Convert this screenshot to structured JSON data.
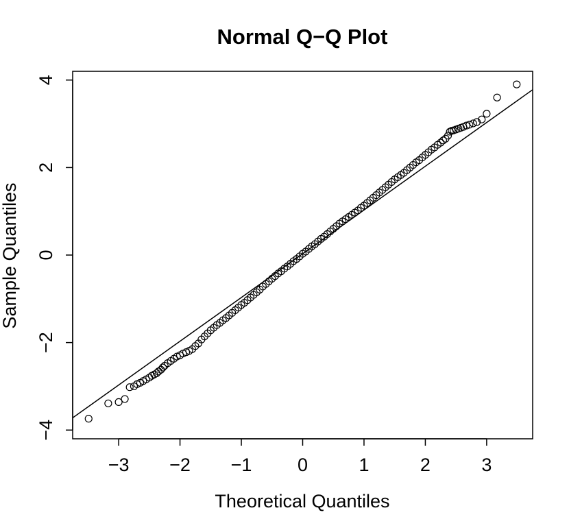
{
  "chart_data": {
    "type": "scatter",
    "title": "Normal Q−Q Plot",
    "xlabel": "Theoretical Quantiles",
    "ylabel": "Sample Quantiles",
    "xlim": [
      -3.75,
      3.75
    ],
    "ylim": [
      -4.2,
      4.2
    ],
    "x_ticks": [
      -3,
      -2,
      -1,
      0,
      1,
      2,
      3
    ],
    "x_tick_labels": [
      "−3",
      "−2",
      "−1",
      "0",
      "1",
      "2",
      "3"
    ],
    "y_ticks": [
      -4,
      -2,
      0,
      2,
      4
    ],
    "y_tick_labels": [
      "−4",
      "−2",
      "0",
      "2",
      "4"
    ],
    "grid": false,
    "legend": "none",
    "marker": "open-circle",
    "reference_line": {
      "intercept": 0.03,
      "slope": 1.0
    },
    "series": [
      {
        "points": [
          [
            -3.49,
            -3.74
          ],
          [
            -3.17,
            -3.39
          ],
          [
            -3.0,
            -3.36
          ],
          [
            -2.9,
            -3.29
          ],
          [
            -2.82,
            -3.02
          ],
          [
            -2.75,
            -3.0
          ],
          [
            -2.7,
            -2.95
          ],
          [
            -2.65,
            -2.92
          ],
          [
            -2.6,
            -2.88
          ],
          [
            -2.55,
            -2.84
          ],
          [
            -2.5,
            -2.8
          ],
          [
            -2.46,
            -2.76
          ],
          [
            -2.42,
            -2.73
          ],
          [
            -2.38,
            -2.7
          ],
          [
            -2.35,
            -2.66
          ],
          [
            -2.31,
            -2.62
          ],
          [
            -2.28,
            -2.57
          ],
          [
            -2.25,
            -2.53
          ],
          [
            -2.2,
            -2.47
          ],
          [
            -2.15,
            -2.42
          ],
          [
            -2.1,
            -2.37
          ],
          [
            -2.05,
            -2.32
          ],
          [
            -2.0,
            -2.29
          ],
          [
            -1.95,
            -2.25
          ],
          [
            -1.9,
            -2.22
          ],
          [
            -1.85,
            -2.19
          ],
          [
            -1.8,
            -2.15
          ],
          [
            -1.75,
            -2.08
          ],
          [
            -1.7,
            -2.02
          ],
          [
            -1.65,
            -1.93
          ],
          [
            -1.6,
            -1.86
          ],
          [
            -1.55,
            -1.79
          ],
          [
            -1.5,
            -1.72
          ],
          [
            -1.45,
            -1.66
          ],
          [
            -1.4,
            -1.6
          ],
          [
            -1.35,
            -1.55
          ],
          [
            -1.3,
            -1.49
          ],
          [
            -1.25,
            -1.44
          ],
          [
            -1.2,
            -1.38
          ],
          [
            -1.15,
            -1.32
          ],
          [
            -1.1,
            -1.26
          ],
          [
            -1.05,
            -1.2
          ],
          [
            -1.0,
            -1.14
          ],
          [
            -0.95,
            -1.09
          ],
          [
            -0.9,
            -1.03
          ],
          [
            -0.85,
            -0.97
          ],
          [
            -0.8,
            -0.91
          ],
          [
            -0.75,
            -0.85
          ],
          [
            -0.7,
            -0.79
          ],
          [
            -0.65,
            -0.72
          ],
          [
            -0.6,
            -0.66
          ],
          [
            -0.55,
            -0.6
          ],
          [
            -0.5,
            -0.54
          ],
          [
            -0.45,
            -0.48
          ],
          [
            -0.4,
            -0.42
          ],
          [
            -0.35,
            -0.37
          ],
          [
            -0.3,
            -0.31
          ],
          [
            -0.25,
            -0.26
          ],
          [
            -0.2,
            -0.2
          ],
          [
            -0.15,
            -0.14
          ],
          [
            -0.1,
            -0.09
          ],
          [
            -0.05,
            -0.03
          ],
          [
            0.0,
            0.03
          ],
          [
            0.05,
            0.08
          ],
          [
            0.1,
            0.14
          ],
          [
            0.15,
            0.2
          ],
          [
            0.2,
            0.25
          ],
          [
            0.25,
            0.31
          ],
          [
            0.3,
            0.37
          ],
          [
            0.35,
            0.42
          ],
          [
            0.4,
            0.48
          ],
          [
            0.45,
            0.54
          ],
          [
            0.5,
            0.6
          ],
          [
            0.55,
            0.66
          ],
          [
            0.6,
            0.72
          ],
          [
            0.65,
            0.77
          ],
          [
            0.7,
            0.82
          ],
          [
            0.75,
            0.87
          ],
          [
            0.8,
            0.92
          ],
          [
            0.85,
            0.97
          ],
          [
            0.9,
            1.02
          ],
          [
            0.95,
            1.08
          ],
          [
            1.0,
            1.13
          ],
          [
            1.05,
            1.19
          ],
          [
            1.1,
            1.25
          ],
          [
            1.15,
            1.31
          ],
          [
            1.2,
            1.37
          ],
          [
            1.25,
            1.43
          ],
          [
            1.3,
            1.49
          ],
          [
            1.35,
            1.55
          ],
          [
            1.4,
            1.61
          ],
          [
            1.45,
            1.67
          ],
          [
            1.5,
            1.73
          ],
          [
            1.55,
            1.78
          ],
          [
            1.6,
            1.83
          ],
          [
            1.65,
            1.88
          ],
          [
            1.7,
            1.94
          ],
          [
            1.75,
            2.0
          ],
          [
            1.8,
            2.06
          ],
          [
            1.85,
            2.12
          ],
          [
            1.9,
            2.17
          ],
          [
            1.95,
            2.23
          ],
          [
            2.0,
            2.29
          ],
          [
            2.05,
            2.35
          ],
          [
            2.1,
            2.41
          ],
          [
            2.15,
            2.46
          ],
          [
            2.2,
            2.52
          ],
          [
            2.25,
            2.57
          ],
          [
            2.29,
            2.62
          ],
          [
            2.33,
            2.66
          ],
          [
            2.37,
            2.73
          ],
          [
            2.4,
            2.82
          ],
          [
            2.43,
            2.84
          ],
          [
            2.46,
            2.85
          ],
          [
            2.5,
            2.87
          ],
          [
            2.54,
            2.89
          ],
          [
            2.58,
            2.91
          ],
          [
            2.62,
            2.93
          ],
          [
            2.67,
            2.96
          ],
          [
            2.72,
            2.98
          ],
          [
            2.78,
            3.01
          ],
          [
            2.84,
            3.04
          ],
          [
            2.92,
            3.1
          ],
          [
            3.0,
            3.23
          ],
          [
            3.17,
            3.6
          ],
          [
            3.49,
            3.9
          ]
        ]
      }
    ]
  }
}
